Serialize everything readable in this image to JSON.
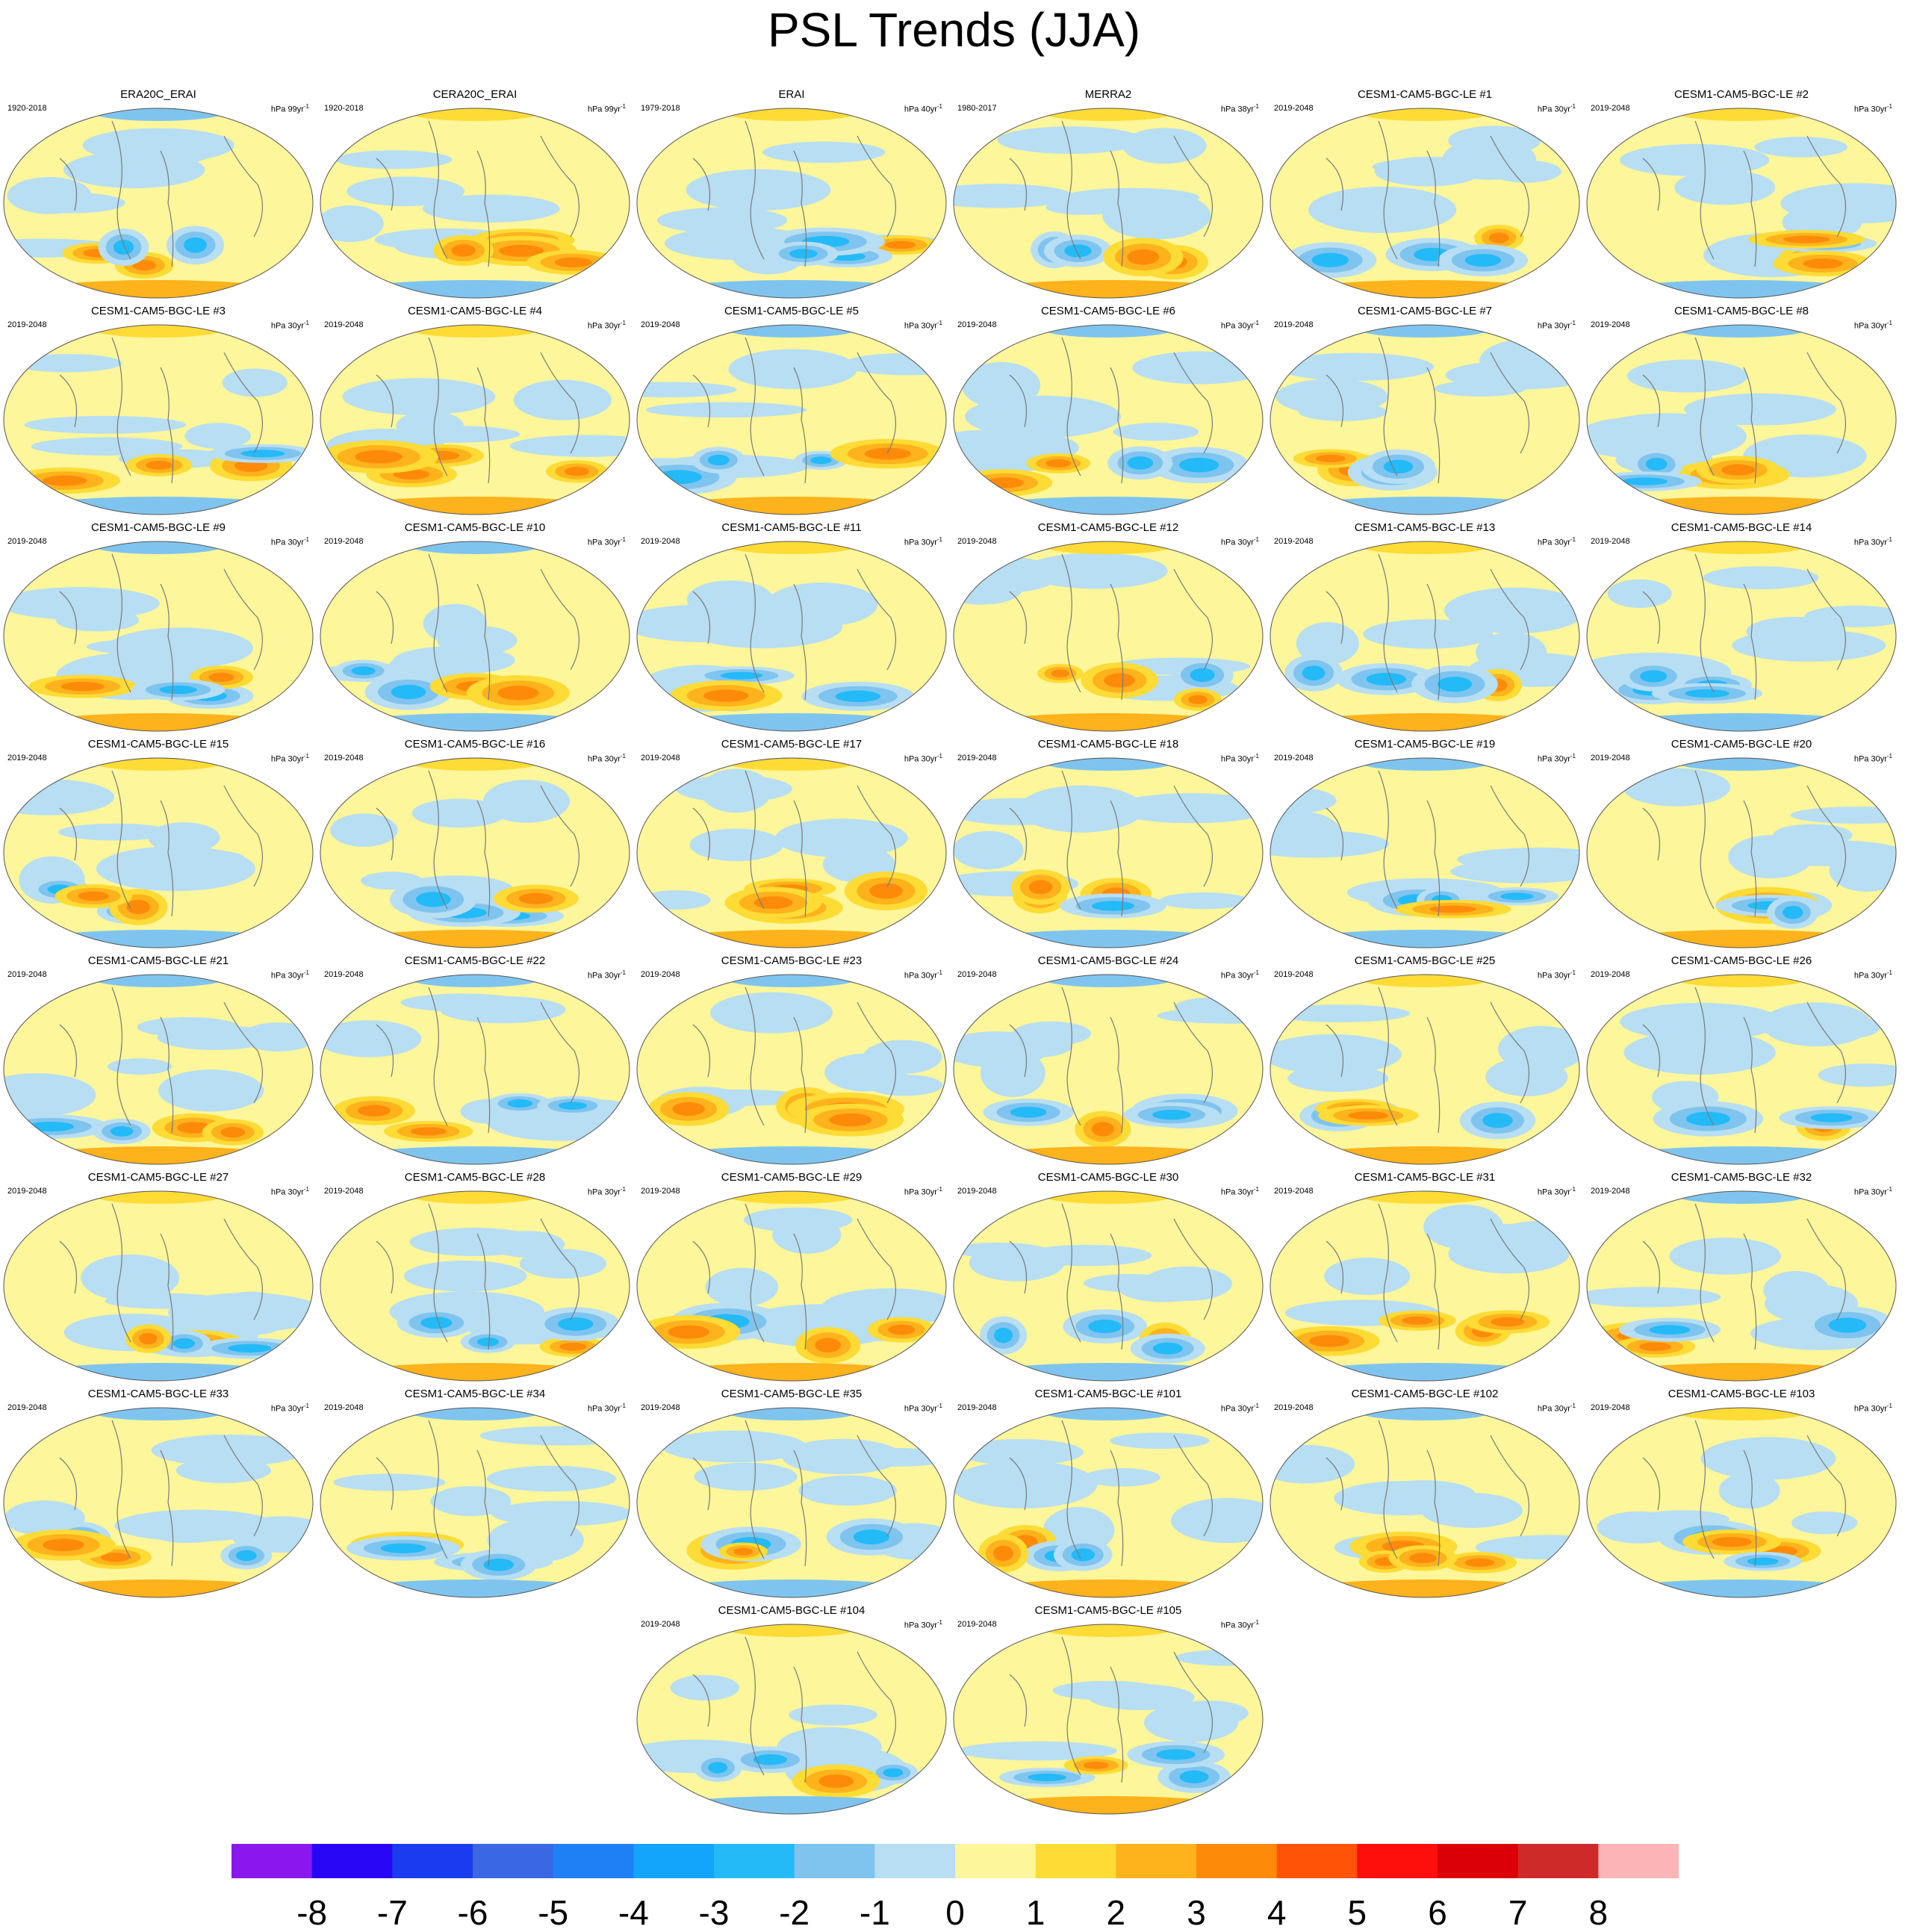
{
  "chart_data": {
    "type": "heatmap",
    "title": "PSL Trends (JJA)",
    "colorbar": {
      "ticks": [
        "-8",
        "-7",
        "-6",
        "-5",
        "-4",
        "-3",
        "-2",
        "-1",
        "0",
        "1",
        "2",
        "3",
        "4",
        "5",
        "6",
        "7",
        "8"
      ],
      "colors": [
        "#8a18ee",
        "#2a06f7",
        "#1b3bf0",
        "#3a67e3",
        "#1f80f6",
        "#13a4fb",
        "#23baf7",
        "#7fc4ef",
        "#b7def2",
        "#fdf69a",
        "#fedb35",
        "#feb21c",
        "#fe8a0a",
        "#ff5307",
        "#fe0f0c",
        "#db0007",
        "#cf2a2a",
        "#fdb4b6"
      ]
    },
    "panels": [
      {
        "title": "ERA20C_ERAI",
        "period": "1920-2018",
        "unit_prefix": "hPa 99yr",
        "unit_exp": "-1"
      },
      {
        "title": "CERA20C_ERAI",
        "period": "1920-2018",
        "unit_prefix": "hPa 99yr",
        "unit_exp": "-1"
      },
      {
        "title": "ERAI",
        "period": "1979-2018",
        "unit_prefix": "hPa 40yr",
        "unit_exp": "-1"
      },
      {
        "title": "MERRA2",
        "period": "1980-2017",
        "unit_prefix": "hPa 38yr",
        "unit_exp": "-1"
      },
      {
        "title": "CESM1-CAM5-BGC-LE #1",
        "period": "2019-2048",
        "unit_prefix": "hPa 30yr",
        "unit_exp": "-1"
      },
      {
        "title": "CESM1-CAM5-BGC-LE #2",
        "period": "2019-2048",
        "unit_prefix": "hPa 30yr",
        "unit_exp": "-1"
      },
      {
        "title": "CESM1-CAM5-BGC-LE #3",
        "period": "2019-2048",
        "unit_prefix": "hPa 30yr",
        "unit_exp": "-1"
      },
      {
        "title": "CESM1-CAM5-BGC-LE #4",
        "period": "2019-2048",
        "unit_prefix": "hPa 30yr",
        "unit_exp": "-1"
      },
      {
        "title": "CESM1-CAM5-BGC-LE #5",
        "period": "2019-2048",
        "unit_prefix": "hPa 30yr",
        "unit_exp": "-1"
      },
      {
        "title": "CESM1-CAM5-BGC-LE #6",
        "period": "2019-2048",
        "unit_prefix": "hPa 30yr",
        "unit_exp": "-1"
      },
      {
        "title": "CESM1-CAM5-BGC-LE #7",
        "period": "2019-2048",
        "unit_prefix": "hPa 30yr",
        "unit_exp": "-1"
      },
      {
        "title": "CESM1-CAM5-BGC-LE #8",
        "period": "2019-2048",
        "unit_prefix": "hPa 30yr",
        "unit_exp": "-1"
      },
      {
        "title": "CESM1-CAM5-BGC-LE #9",
        "period": "2019-2048",
        "unit_prefix": "hPa 30yr",
        "unit_exp": "-1"
      },
      {
        "title": "CESM1-CAM5-BGC-LE #10",
        "period": "2019-2048",
        "unit_prefix": "hPa 30yr",
        "unit_exp": "-1"
      },
      {
        "title": "CESM1-CAM5-BGC-LE #11",
        "period": "2019-2048",
        "unit_prefix": "hPa 30yr",
        "unit_exp": "-1"
      },
      {
        "title": "CESM1-CAM5-BGC-LE #12",
        "period": "2019-2048",
        "unit_prefix": "hPa 30yr",
        "unit_exp": "-1"
      },
      {
        "title": "CESM1-CAM5-BGC-LE #13",
        "period": "2019-2048",
        "unit_prefix": "hPa 30yr",
        "unit_exp": "-1"
      },
      {
        "title": "CESM1-CAM5-BGC-LE #14",
        "period": "2019-2048",
        "unit_prefix": "hPa 30yr",
        "unit_exp": "-1"
      },
      {
        "title": "CESM1-CAM5-BGC-LE #15",
        "period": "2019-2048",
        "unit_prefix": "hPa 30yr",
        "unit_exp": "-1"
      },
      {
        "title": "CESM1-CAM5-BGC-LE #16",
        "period": "2019-2048",
        "unit_prefix": "hPa 30yr",
        "unit_exp": "-1"
      },
      {
        "title": "CESM1-CAM5-BGC-LE #17",
        "period": "2019-2048",
        "unit_prefix": "hPa 30yr",
        "unit_exp": "-1"
      },
      {
        "title": "CESM1-CAM5-BGC-LE #18",
        "period": "2019-2048",
        "unit_prefix": "hPa 30yr",
        "unit_exp": "-1"
      },
      {
        "title": "CESM1-CAM5-BGC-LE #19",
        "period": "2019-2048",
        "unit_prefix": "hPa 30yr",
        "unit_exp": "-1"
      },
      {
        "title": "CESM1-CAM5-BGC-LE #20",
        "period": "2019-2048",
        "unit_prefix": "hPa 30yr",
        "unit_exp": "-1"
      },
      {
        "title": "CESM1-CAM5-BGC-LE #21",
        "period": "2019-2048",
        "unit_prefix": "hPa 30yr",
        "unit_exp": "-1"
      },
      {
        "title": "CESM1-CAM5-BGC-LE #22",
        "period": "2019-2048",
        "unit_prefix": "hPa 30yr",
        "unit_exp": "-1"
      },
      {
        "title": "CESM1-CAM5-BGC-LE #23",
        "period": "2019-2048",
        "unit_prefix": "hPa 30yr",
        "unit_exp": "-1"
      },
      {
        "title": "CESM1-CAM5-BGC-LE #24",
        "period": "2019-2048",
        "unit_prefix": "hPa 30yr",
        "unit_exp": "-1"
      },
      {
        "title": "CESM1-CAM5-BGC-LE #25",
        "period": "2019-2048",
        "unit_prefix": "hPa 30yr",
        "unit_exp": "-1"
      },
      {
        "title": "CESM1-CAM5-BGC-LE #26",
        "period": "2019-2048",
        "unit_prefix": "hPa 30yr",
        "unit_exp": "-1"
      },
      {
        "title": "CESM1-CAM5-BGC-LE #27",
        "period": "2019-2048",
        "unit_prefix": "hPa 30yr",
        "unit_exp": "-1"
      },
      {
        "title": "CESM1-CAM5-BGC-LE #28",
        "period": "2019-2048",
        "unit_prefix": "hPa 30yr",
        "unit_exp": "-1"
      },
      {
        "title": "CESM1-CAM5-BGC-LE #29",
        "period": "2019-2048",
        "unit_prefix": "hPa 30yr",
        "unit_exp": "-1"
      },
      {
        "title": "CESM1-CAM5-BGC-LE #30",
        "period": "2019-2048",
        "unit_prefix": "hPa 30yr",
        "unit_exp": "-1"
      },
      {
        "title": "CESM1-CAM5-BGC-LE #31",
        "period": "2019-2048",
        "unit_prefix": "hPa 30yr",
        "unit_exp": "-1"
      },
      {
        "title": "CESM1-CAM5-BGC-LE #32",
        "period": "2019-2048",
        "unit_prefix": "hPa 30yr",
        "unit_exp": "-1"
      },
      {
        "title": "CESM1-CAM5-BGC-LE #33",
        "period": "2019-2048",
        "unit_prefix": "hPa 30yr",
        "unit_exp": "-1"
      },
      {
        "title": "CESM1-CAM5-BGC-LE #34",
        "period": "2019-2048",
        "unit_prefix": "hPa 30yr",
        "unit_exp": "-1"
      },
      {
        "title": "CESM1-CAM5-BGC-LE #35",
        "period": "2019-2048",
        "unit_prefix": "hPa 30yr",
        "unit_exp": "-1"
      },
      {
        "title": "CESM1-CAM5-BGC-LE #101",
        "period": "2019-2048",
        "unit_prefix": "hPa 30yr",
        "unit_exp": "-1"
      },
      {
        "title": "CESM1-CAM5-BGC-LE #102",
        "period": "2019-2048",
        "unit_prefix": "hPa 30yr",
        "unit_exp": "-1"
      },
      {
        "title": "CESM1-CAM5-BGC-LE #103",
        "period": "2019-2048",
        "unit_prefix": "hPa 30yr",
        "unit_exp": "-1"
      },
      {
        "title": "CESM1-CAM5-BGC-LE #104",
        "period": "2019-2048",
        "unit_prefix": "hPa 30yr",
        "unit_exp": "-1"
      },
      {
        "title": "CESM1-CAM5-BGC-LE #105",
        "period": "2019-2048",
        "unit_prefix": "hPa 30yr",
        "unit_exp": "-1"
      }
    ]
  }
}
